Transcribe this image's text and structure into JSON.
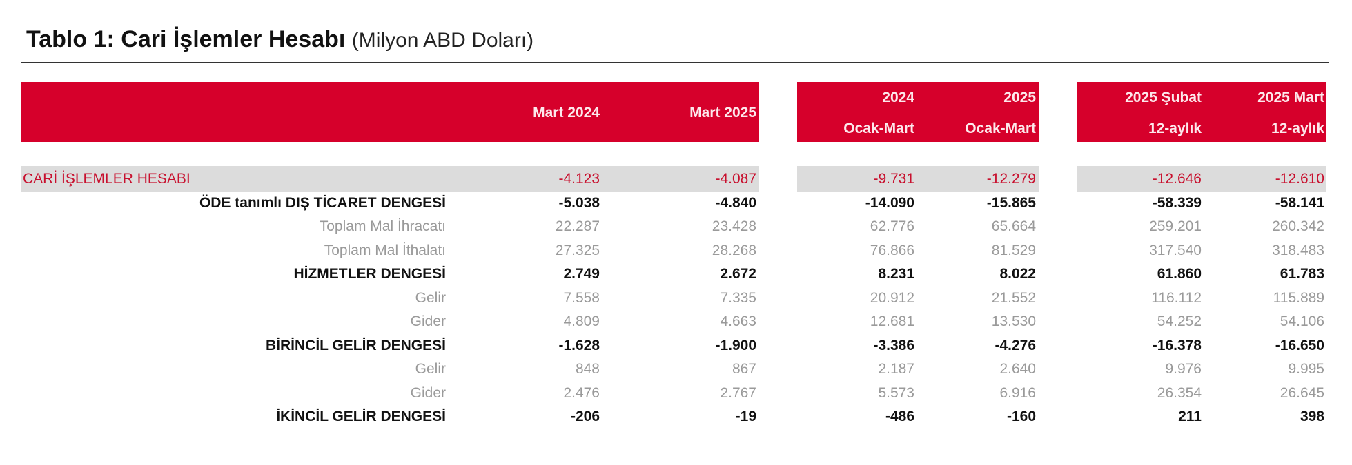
{
  "title": {
    "main": "Tablo 1: Cari İşlemler Hesabı",
    "unit": "(Milyon ABD Doları)"
  },
  "colors": {
    "header_bg": "#d6002b",
    "highlight_band": "#dcdcdc",
    "highlight_text": "#c8102e"
  },
  "columns": [
    {
      "line1": "",
      "line2": "Mart 2024"
    },
    {
      "line1": "",
      "line2": "Mart 2025"
    },
    {
      "line1": "2024",
      "line2": "Ocak-Mart"
    },
    {
      "line1": "2025",
      "line2": "Ocak-Mart"
    },
    {
      "line1": "2025 Şubat",
      "line2": "12-aylık"
    },
    {
      "line1": "2025 Mart",
      "line2": "12-aylık"
    }
  ],
  "rows": [
    {
      "label": "CARİ İŞLEMLER HESABI",
      "style": "red",
      "values": [
        "-4.123",
        "-4.087",
        "-9.731",
        "-12.279",
        "-12.646",
        "-12.610"
      ]
    },
    {
      "label": "ÖDE tanımlı DIŞ TİCARET DENGESİ",
      "style": "bold",
      "values": [
        "-5.038",
        "-4.840",
        "-14.090",
        "-15.865",
        "-58.339",
        "-58.141"
      ]
    },
    {
      "label": "Toplam Mal İhracatı",
      "style": "sub",
      "values": [
        "22.287",
        "23.428",
        "62.776",
        "65.664",
        "259.201",
        "260.342"
      ]
    },
    {
      "label": "Toplam Mal İthalatı",
      "style": "sub",
      "values": [
        "27.325",
        "28.268",
        "76.866",
        "81.529",
        "317.540",
        "318.483"
      ]
    },
    {
      "label": "HİZMETLER DENGESİ",
      "style": "bold",
      "values": [
        "2.749",
        "2.672",
        "8.231",
        "8.022",
        "61.860",
        "61.783"
      ]
    },
    {
      "label": "Gelir",
      "style": "sub",
      "values": [
        "7.558",
        "7.335",
        "20.912",
        "21.552",
        "116.112",
        "115.889"
      ]
    },
    {
      "label": "Gider",
      "style": "sub",
      "values": [
        "4.809",
        "4.663",
        "12.681",
        "13.530",
        "54.252",
        "54.106"
      ]
    },
    {
      "label": "BİRİNCİL GELİR DENGESİ",
      "style": "bold",
      "values": [
        "-1.628",
        "-1.900",
        "-3.386",
        "-4.276",
        "-16.378",
        "-16.650"
      ]
    },
    {
      "label": "Gelir",
      "style": "sub",
      "values": [
        "848",
        "867",
        "2.187",
        "2.640",
        "9.976",
        "9.995"
      ]
    },
    {
      "label": "Gider",
      "style": "sub",
      "values": [
        "2.476",
        "2.767",
        "5.573",
        "6.916",
        "26.354",
        "26.645"
      ]
    },
    {
      "label": "İKİNCİL GELİR DENGESİ",
      "style": "bold",
      "values": [
        "-206",
        "-19",
        "-486",
        "-160",
        "211",
        "398"
      ]
    }
  ]
}
